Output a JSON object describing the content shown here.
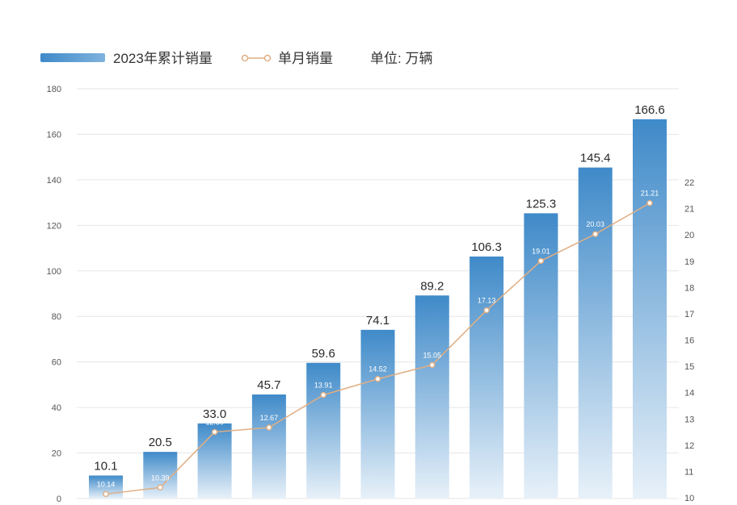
{
  "chart_data": {
    "type": "bar",
    "legend": {
      "bar_series": "2023年累计销量",
      "line_series": "单月销量",
      "unit": "单位: 万辆",
      "placement": "top-left"
    },
    "series": [
      {
        "name": "2023年累计销量",
        "type": "bar",
        "axis": "left",
        "values": [
          10.1,
          20.5,
          33.0,
          45.7,
          59.6,
          74.1,
          89.2,
          106.3,
          125.3,
          145.4,
          166.6
        ],
        "labels": [
          "10.1",
          "20.5",
          "33.0",
          "45.7",
          "59.6",
          "74.1",
          "89.2",
          "106.3",
          "125.3",
          "145.4",
          "166.6"
        ]
      },
      {
        "name": "单月销量",
        "type": "line",
        "axis": "right",
        "values": [
          10.14,
          10.39,
          12.5,
          12.67,
          13.91,
          14.52,
          15.05,
          17.13,
          19.01,
          20.03,
          21.21
        ],
        "labels": [
          "10.14",
          "10.39",
          "12.50",
          "12.67",
          "13.91",
          "14.52",
          "15.05",
          "17.13",
          "19.01",
          "20.03",
          "21.21"
        ]
      }
    ],
    "y_left": {
      "min": 0,
      "max": 180,
      "ticks": [
        "0",
        "20",
        "40",
        "60",
        "80",
        "100",
        "120",
        "140",
        "160",
        "180"
      ]
    },
    "y_right": {
      "min": 10,
      "max": 22,
      "ticks": [
        "10",
        "11",
        "12",
        "13",
        "14",
        "15",
        "16",
        "17",
        "18",
        "19",
        "20",
        "21",
        "22"
      ]
    },
    "grid": true,
    "colors": {
      "bar_top": "#3f8ac9",
      "bar_bottom": "#e8f1f9",
      "line": "#e0ae84",
      "marker_fill": "#ffffff"
    }
  }
}
